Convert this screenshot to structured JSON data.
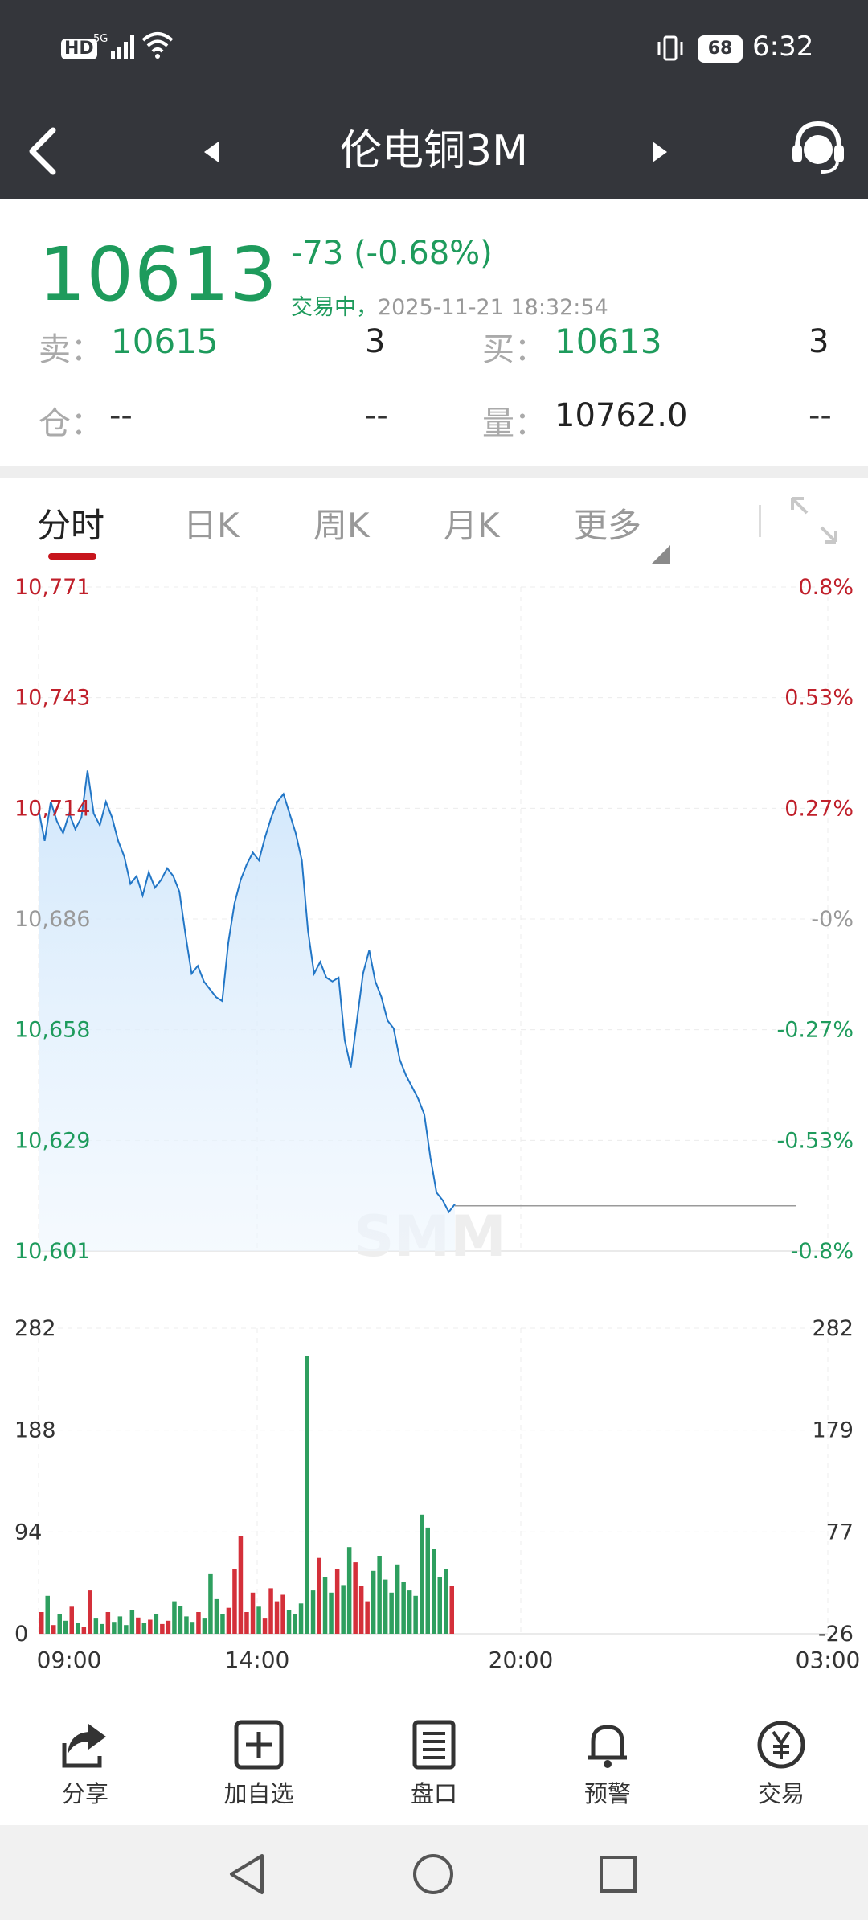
{
  "status_bar": {
    "hd": "HD",
    "signal": "5G",
    "battery": "68",
    "time": "6:32"
  },
  "header": {
    "title": "伦电铜3M"
  },
  "quote": {
    "price": "10613",
    "change": "-73",
    "change_pct": "(-0.68%)",
    "status": "交易中，",
    "timestamp": "2025-11-21 18:32:54",
    "sell_label": "卖：",
    "sell_price": "10615",
    "sell_qty": "3",
    "buy_label": "买：",
    "buy_price": "10613",
    "buy_qty": "3",
    "position_label": "仓：",
    "position_value": "--",
    "position_change": "--",
    "volume_label": "量：",
    "volume_value": "10762.0",
    "volume_change": "--"
  },
  "tabs": [
    {
      "label": "分时",
      "active": true
    },
    {
      "label": "日K"
    },
    {
      "label": "周K"
    },
    {
      "label": "月K"
    },
    {
      "label": "更多"
    }
  ],
  "chart_data": {
    "type": "line",
    "price_axis_left": [
      "10,771",
      "10,743",
      "10,714",
      "10,686",
      "10,658",
      "10,629",
      "10,601"
    ],
    "price_axis_right": [
      "0.8%",
      "0.53%",
      "0.27%",
      "-0%",
      "-0.27%",
      "-0.53%",
      "-0.8%"
    ],
    "price_ylim": [
      10601,
      10771
    ],
    "prev_close": 10686,
    "volume_axis_left": [
      "282",
      "188",
      "94",
      "0"
    ],
    "volume_axis_right": [
      "282",
      "179",
      "77",
      "-26"
    ],
    "volume_ylim": [
      0,
      282
    ],
    "x_ticks": [
      "09:00",
      "14:00",
      "20:00",
      "03:00"
    ],
    "series": [
      {
        "values": [
          10714,
          10706,
          10716,
          10711,
          10708,
          10713,
          10709,
          10712,
          10724,
          10713,
          10710,
          10716,
          10712,
          10706,
          10702,
          10695,
          10697,
          10692,
          10698,
          10694,
          10696,
          10699,
          10697,
          10693,
          10682,
          10672,
          10674,
          10670,
          10668,
          10666,
          10665,
          10680,
          10690,
          10696,
          10700,
          10703,
          10701,
          10707,
          10712,
          10716,
          10718,
          10713,
          10708,
          10701,
          10683,
          10672,
          10675,
          10671,
          10670,
          10671,
          10655,
          10648,
          10660,
          10672,
          10678,
          10670,
          10666,
          10660,
          10658,
          10650,
          10646,
          10643,
          10640,
          10636,
          10625,
          10616,
          10614,
          10611,
          10613
        ],
        "up_color": "#d4303a",
        "down_color": "#2e9f5f"
      }
    ],
    "volume": [
      20,
      35,
      8,
      18,
      12,
      25,
      10,
      6,
      40,
      14,
      9,
      20,
      11,
      16,
      8,
      22,
      15,
      10,
      13,
      18,
      9,
      12,
      30,
      26,
      16,
      11,
      20,
      14,
      55,
      32,
      18,
      24,
      60,
      90,
      20,
      38,
      25,
      14,
      42,
      30,
      36,
      22,
      18,
      28,
      256,
      40,
      70,
      52,
      38,
      60,
      45,
      80,
      66,
      44,
      30,
      58,
      72,
      50,
      38,
      64,
      48,
      40,
      35,
      110,
      98,
      78,
      52,
      60,
      44
    ]
  },
  "colors": {
    "accent_red": "#c7151c",
    "down_green": "#1e9b5c",
    "header_bg": "#34363b"
  },
  "toolbar": [
    {
      "label": "分享",
      "icon": "share-icon"
    },
    {
      "label": "加自选",
      "icon": "add-watchlist-icon"
    },
    {
      "label": "盘口",
      "icon": "order-book-icon"
    },
    {
      "label": "预警",
      "icon": "bell-icon"
    },
    {
      "label": "交易",
      "icon": "yen-icon"
    }
  ]
}
